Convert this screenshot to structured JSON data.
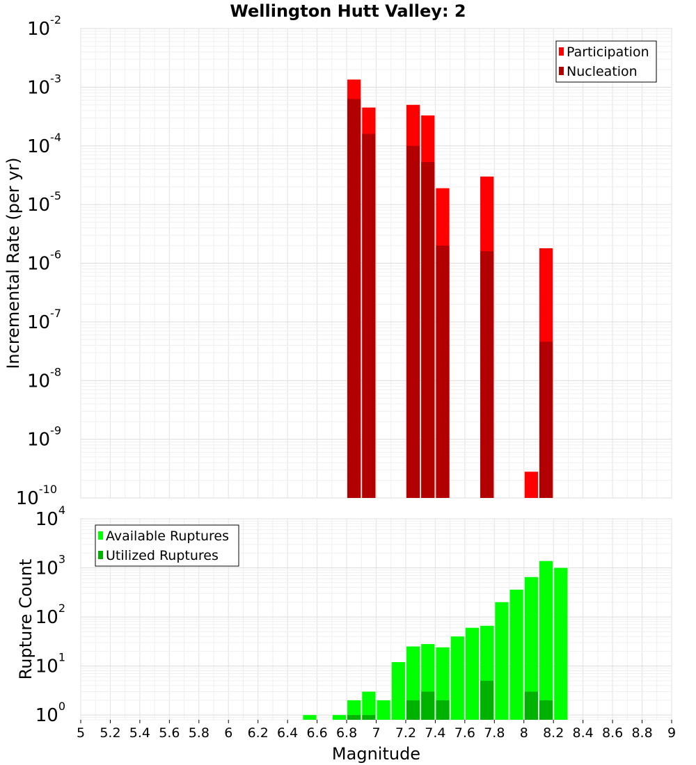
{
  "chart_data": [
    {
      "type": "bar",
      "title": "Wellington Hutt Valley: 2",
      "xlabel": "Magnitude",
      "ylabel": "Incremental Rate (per yr)",
      "x_range": [
        5,
        9
      ],
      "ylim": [
        1e-10,
        0.01
      ],
      "y_scale": "log",
      "y_tick_exponents": [
        -10,
        -9,
        -8,
        -7,
        -6,
        -5,
        -4,
        -3,
        -2
      ],
      "legend": {
        "placement": "top-right",
        "entries": [
          "Participation",
          "Nucleation"
        ]
      },
      "grid": true,
      "bin_width": 0.1,
      "series": [
        {
          "name": "Participation",
          "color": "#ff0000",
          "points": [
            {
              "x": 6.85,
              "y": 0.00135
            },
            {
              "x": 6.95,
              "y": 0.00045
            },
            {
              "x": 7.25,
              "y": 0.0005
            },
            {
              "x": 7.35,
              "y": 0.00033
            },
            {
              "x": 7.45,
              "y": 1.9e-05
            },
            {
              "x": 7.75,
              "y": 3e-05
            },
            {
              "x": 8.05,
              "y": 2.8e-10
            },
            {
              "x": 8.15,
              "y": 1.8e-06
            }
          ]
        },
        {
          "name": "Nucleation",
          "color": "#b20000",
          "points": [
            {
              "x": 6.85,
              "y": 0.00063
            },
            {
              "x": 6.95,
              "y": 0.00016
            },
            {
              "x": 7.25,
              "y": 0.0001
            },
            {
              "x": 7.35,
              "y": 5.3e-05
            },
            {
              "x": 7.45,
              "y": 2e-06
            },
            {
              "x": 7.75,
              "y": 1.6e-06
            },
            {
              "x": 8.15,
              "y": 4.6e-08
            }
          ]
        }
      ]
    },
    {
      "type": "bar",
      "xlabel": "Magnitude",
      "ylabel": "Rupture Count",
      "x_range": [
        5,
        9
      ],
      "x_ticks": [
        "5",
        "5.2",
        "5.4",
        "5.6",
        "5.8",
        "6",
        "6.2",
        "6.4",
        "6.6",
        "6.8",
        "7",
        "7.2",
        "7.4",
        "7.6",
        "7.8",
        "8",
        "8.2",
        "8.4",
        "8.6",
        "8.8",
        "9"
      ],
      "ylim": [
        0.8,
        10000
      ],
      "y_scale": "log",
      "y_tick_exponents": [
        0,
        1,
        2,
        3,
        4
      ],
      "legend": {
        "placement": "top-left",
        "entries": [
          "Available Ruptures",
          "Utilized Ruptures"
        ]
      },
      "grid": true,
      "bin_width": 0.1,
      "series": [
        {
          "name": "Available Ruptures",
          "color": "#00ff00",
          "points": [
            {
              "x": 6.55,
              "y": 1
            },
            {
              "x": 6.75,
              "y": 1
            },
            {
              "x": 6.85,
              "y": 2
            },
            {
              "x": 6.95,
              "y": 3
            },
            {
              "x": 7.05,
              "y": 2
            },
            {
              "x": 7.15,
              "y": 12
            },
            {
              "x": 7.25,
              "y": 25
            },
            {
              "x": 7.35,
              "y": 28
            },
            {
              "x": 7.45,
              "y": 24
            },
            {
              "x": 7.55,
              "y": 40
            },
            {
              "x": 7.65,
              "y": 60
            },
            {
              "x": 7.75,
              "y": 66
            },
            {
              "x": 7.85,
              "y": 200
            },
            {
              "x": 7.95,
              "y": 360
            },
            {
              "x": 8.05,
              "y": 650
            },
            {
              "x": 8.15,
              "y": 1380
            },
            {
              "x": 8.25,
              "y": 1000
            }
          ]
        },
        {
          "name": "Utilized Ruptures",
          "color": "#00b200",
          "points": [
            {
              "x": 6.85,
              "y": 1
            },
            {
              "x": 6.95,
              "y": 1
            },
            {
              "x": 7.25,
              "y": 2
            },
            {
              "x": 7.35,
              "y": 3
            },
            {
              "x": 7.45,
              "y": 2
            },
            {
              "x": 7.75,
              "y": 5
            },
            {
              "x": 8.05,
              "y": 3
            },
            {
              "x": 8.15,
              "y": 2
            }
          ]
        }
      ]
    }
  ]
}
